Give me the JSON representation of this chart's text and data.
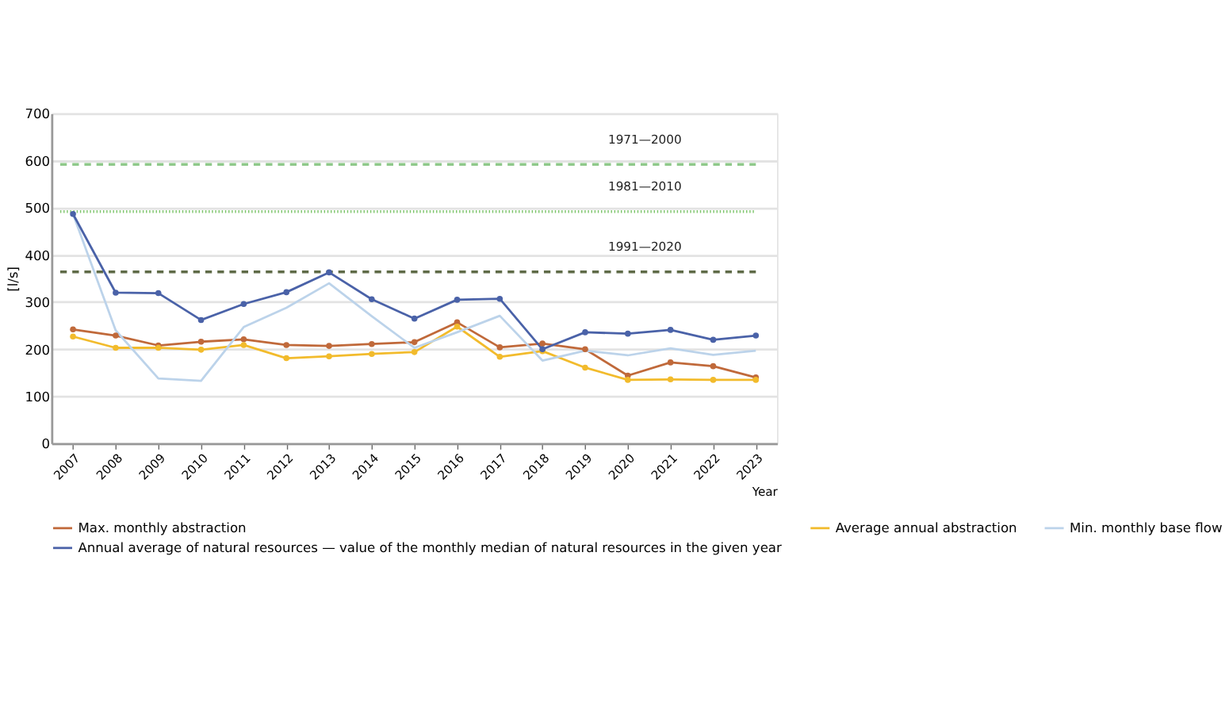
{
  "chart_data": {
    "type": "line",
    "xlabel": "Year",
    "ylabel": "[l/s]",
    "categories": [
      "2007",
      "2008",
      "2009",
      "2010",
      "2011",
      "2012",
      "2013",
      "2014",
      "2015",
      "2016",
      "2017",
      "2018",
      "2019",
      "2020",
      "2021",
      "2022",
      "2023"
    ],
    "series": [
      {
        "name": "Max. monthly abstraction",
        "color": "#c0693a",
        "marker": "circle",
        "values": [
          242,
          229,
          208,
          216,
          221,
          209,
          207,
          211,
          215,
          257,
          204,
          212,
          200,
          144,
          172,
          164,
          140
        ]
      },
      {
        "name": "Average annual abstraction",
        "color": "#f2bb2c",
        "marker": "circle",
        "values": [
          227,
          203,
          203,
          199,
          209,
          181,
          185,
          190,
          194,
          248,
          184,
          196,
          161,
          135,
          136,
          135,
          135
        ]
      },
      {
        "name": "Min. monthly base flow",
        "color": "#bcd3ea",
        "marker": "none",
        "values": [
          487,
          240,
          138,
          133,
          247,
          288,
          340,
          270,
          203,
          236,
          271,
          176,
          197,
          187,
          202,
          188,
          197
        ]
      },
      {
        "name": "Annual average of natural resources — value of the monthly median of natural resources in the given year",
        "color": "#4a62a8",
        "marker": "circle",
        "values": [
          487,
          320,
          319,
          262,
          296,
          321,
          363,
          306,
          265,
          305,
          307,
          200,
          236,
          233,
          241,
          220,
          229
        ]
      }
    ],
    "ylim": [
      0,
      700
    ],
    "yticks": [
      0,
      100,
      200,
      300,
      400,
      500,
      600,
      700
    ],
    "grid": "y",
    "legend": "bottom",
    "line_style": "solid",
    "ref_lines": [
      {
        "axis": "y",
        "value": 592,
        "label": "1971—2000",
        "color": "#8fc98a",
        "line_style": "dashed"
      },
      {
        "axis": "y",
        "value": 492,
        "label": "1981—2010",
        "color": "#7cc46a",
        "line_style": "dotted"
      },
      {
        "axis": "y",
        "value": 364,
        "label": "1991—2020",
        "color": "#5f6b48",
        "line_style": "dashed"
      }
    ]
  }
}
